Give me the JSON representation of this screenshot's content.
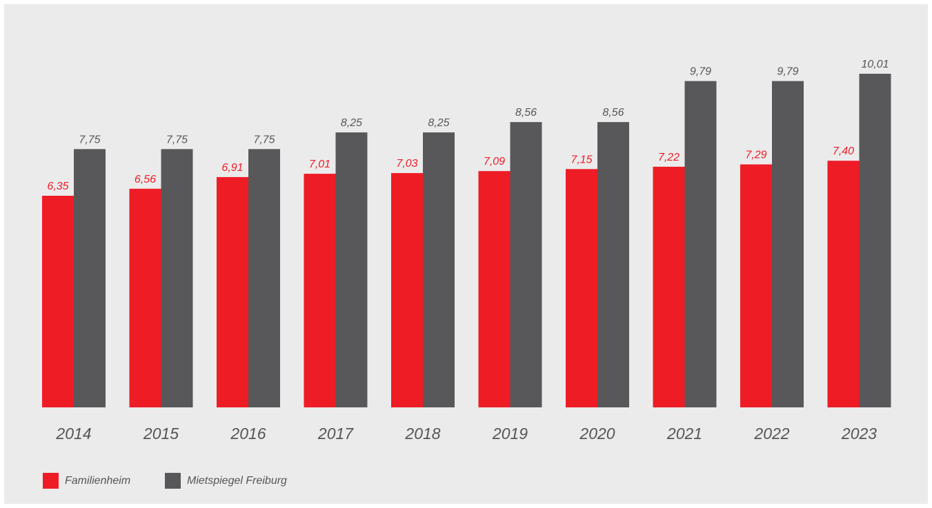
{
  "chart_data": {
    "type": "bar",
    "title": "",
    "xlabel": "",
    "ylabel": "",
    "categories": [
      "2014",
      "2015",
      "2016",
      "2017",
      "2018",
      "2019",
      "2020",
      "2021",
      "2022",
      "2023"
    ],
    "series": [
      {
        "name": "Familienheim",
        "color": "#ee1c25",
        "values": [
          6.35,
          6.56,
          6.91,
          7.01,
          7.03,
          7.09,
          7.15,
          7.22,
          7.29,
          7.4
        ],
        "labels": [
          "6,35",
          "6,56",
          "6,91",
          "7,01",
          "7,03",
          "7,09",
          "7,15",
          "7,22",
          "7,29",
          "7,40"
        ]
      },
      {
        "name": "Mietspiegel Freiburg",
        "color": "#58585a",
        "values": [
          7.75,
          7.75,
          7.75,
          8.25,
          8.25,
          8.56,
          8.56,
          9.79,
          9.79,
          10.01
        ],
        "labels": [
          "7,75",
          "7,75",
          "7,75",
          "8,25",
          "8,25",
          "8,56",
          "8,56",
          "9,79",
          "9,79",
          "10,01"
        ]
      }
    ],
    "ylim": [
      0,
      10.01
    ],
    "grid": false,
    "legend_position": "bottom-left",
    "label_color": "#555555",
    "background": "#ebebec"
  }
}
